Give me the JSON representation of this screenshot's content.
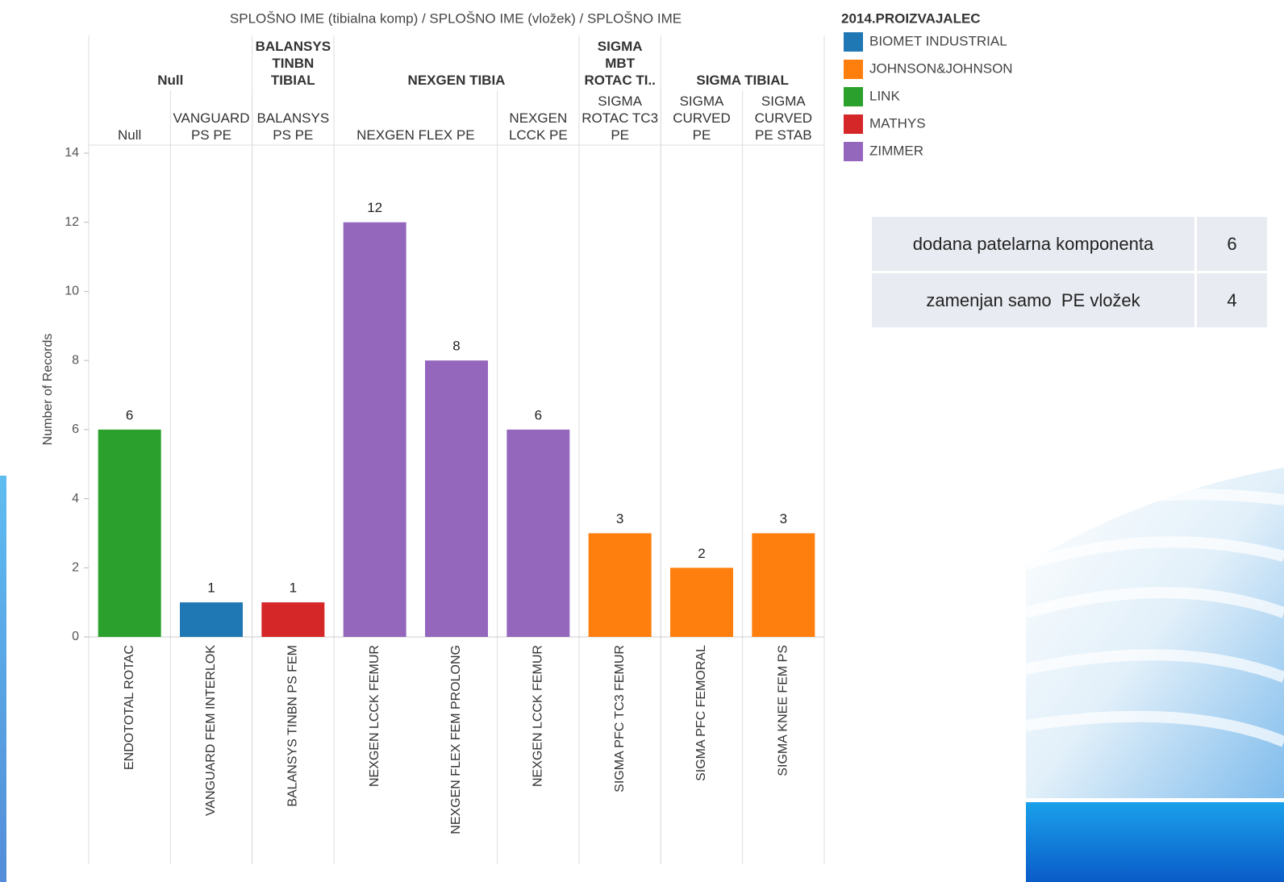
{
  "chart_data": {
    "type": "bar",
    "stacked": true,
    "title": "SPLOŠNO IME (tibialna komp) / SPLOŠNO IME (vložek) / SPLOŠNO IME",
    "y_label": "Number of Records",
    "column_headers": [
      [
        {
          "label": "Null",
          "span": 2
        },
        {
          "label": "BALANSYS TINBN TIBIAL",
          "span": 1
        },
        {
          "label": "NEXGEN TIBIA",
          "span": 3
        },
        {
          "label": "SIGMA MBT ROTAC TI..",
          "span": 1
        },
        {
          "label": "SIGMA TIBIAL",
          "span": 2
        }
      ],
      [
        {
          "label": "Null",
          "span": 1
        },
        {
          "label": "VANGUARD PS PE",
          "span": 1
        },
        {
          "label": "BALANSYS PS PE",
          "span": 1
        },
        {
          "label": "NEXGEN FLEX PE",
          "span": 2
        },
        {
          "label": "NEXGEN LCCK PE",
          "span": 1
        },
        {
          "label": "SIGMA ROTAC TC3 PE",
          "span": 1
        },
        {
          "label": "SIGMA CURVED PE",
          "span": 1
        },
        {
          "label": "SIGMA CURVED PE STAB",
          "span": 1
        }
      ]
    ],
    "categories": [
      "ENDOTOTAL ROTAC",
      "VANGUARD FEM INTERLOK",
      "BALANSYS TINBN PS FEM",
      "NEXGEN LCCK FEMUR",
      "NEXGEN FLEX FEM PROLONG",
      "NEXGEN LCCK FEMUR",
      "SIGMA PFC TC3 FEMUR",
      "SIGMA PFC FEMORAL",
      "SIGMA KNEE FEM PS"
    ],
    "legend_title": "2014.PROIZVAJALEC",
    "series": [
      {
        "name": "BIOMET INDUSTRIAL",
        "color": "#1f77b4",
        "values": [
          null,
          1,
          null,
          null,
          null,
          null,
          null,
          null,
          null
        ]
      },
      {
        "name": "JOHNSON&JOHNSON",
        "color": "#ff7f0e",
        "values": [
          null,
          null,
          null,
          null,
          null,
          null,
          3,
          2,
          3
        ]
      },
      {
        "name": "LINK",
        "color": "#2ca02c",
        "values": [
          6,
          null,
          null,
          null,
          null,
          null,
          null,
          null,
          null
        ]
      },
      {
        "name": "MATHYS",
        "color": "#d62728",
        "values": [
          null,
          null,
          1,
          null,
          null,
          null,
          null,
          null,
          null
        ]
      },
      {
        "name": "ZIMMER",
        "color": "#9467bd",
        "values": [
          null,
          null,
          null,
          12,
          8,
          6,
          null,
          null,
          null
        ]
      }
    ],
    "ylim": [
      0,
      14
    ],
    "yticks": [
      0,
      2,
      4,
      6,
      8,
      10,
      12,
      14
    ]
  },
  "side_table": {
    "rows": [
      [
        "dodana patelarna komponenta",
        "6"
      ],
      [
        "zamenjan samo  PE vložek",
        "4"
      ]
    ]
  }
}
